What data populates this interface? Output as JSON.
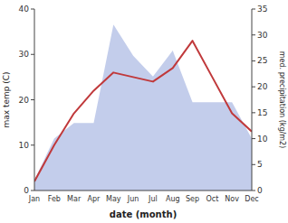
{
  "chart_data": {
    "type": "line",
    "categories": [
      "Jan",
      "Feb",
      "Mar",
      "Apr",
      "May",
      "Jun",
      "Jul",
      "Aug",
      "Sep",
      "Oct",
      "Nov",
      "Dec"
    ],
    "series": [
      {
        "type": "area",
        "axis": "y2",
        "color": "#b8c4e8",
        "values": [
          2,
          10,
          13,
          13,
          32,
          26,
          22,
          27,
          17,
          17,
          17,
          10
        ]
      },
      {
        "type": "line",
        "color": "#c0393b",
        "values": [
          2,
          10,
          17,
          22,
          26,
          25,
          24,
          27,
          33,
          25,
          17,
          13
        ]
      }
    ],
    "xlabel": "date (month)",
    "ylabel": "max temp (C)",
    "y2label": "med. precipitation (kg/m2)",
    "ylim": [
      0,
      40
    ],
    "yticks": [
      0,
      10,
      20,
      30,
      40
    ],
    "y2lim": [
      0,
      35
    ],
    "y2ticks": [
      0,
      5,
      10,
      15,
      20,
      25,
      30,
      35
    ],
    "grid": false
  }
}
